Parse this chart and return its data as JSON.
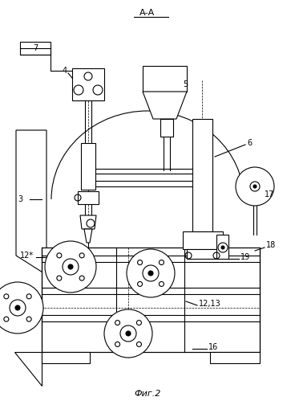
{
  "title": "А-А",
  "subtitle": "Фиг.2",
  "bg_color": "#ffffff",
  "line_color": "#000000",
  "fig_width": 3.68,
  "fig_height": 4.99,
  "dpi": 100
}
